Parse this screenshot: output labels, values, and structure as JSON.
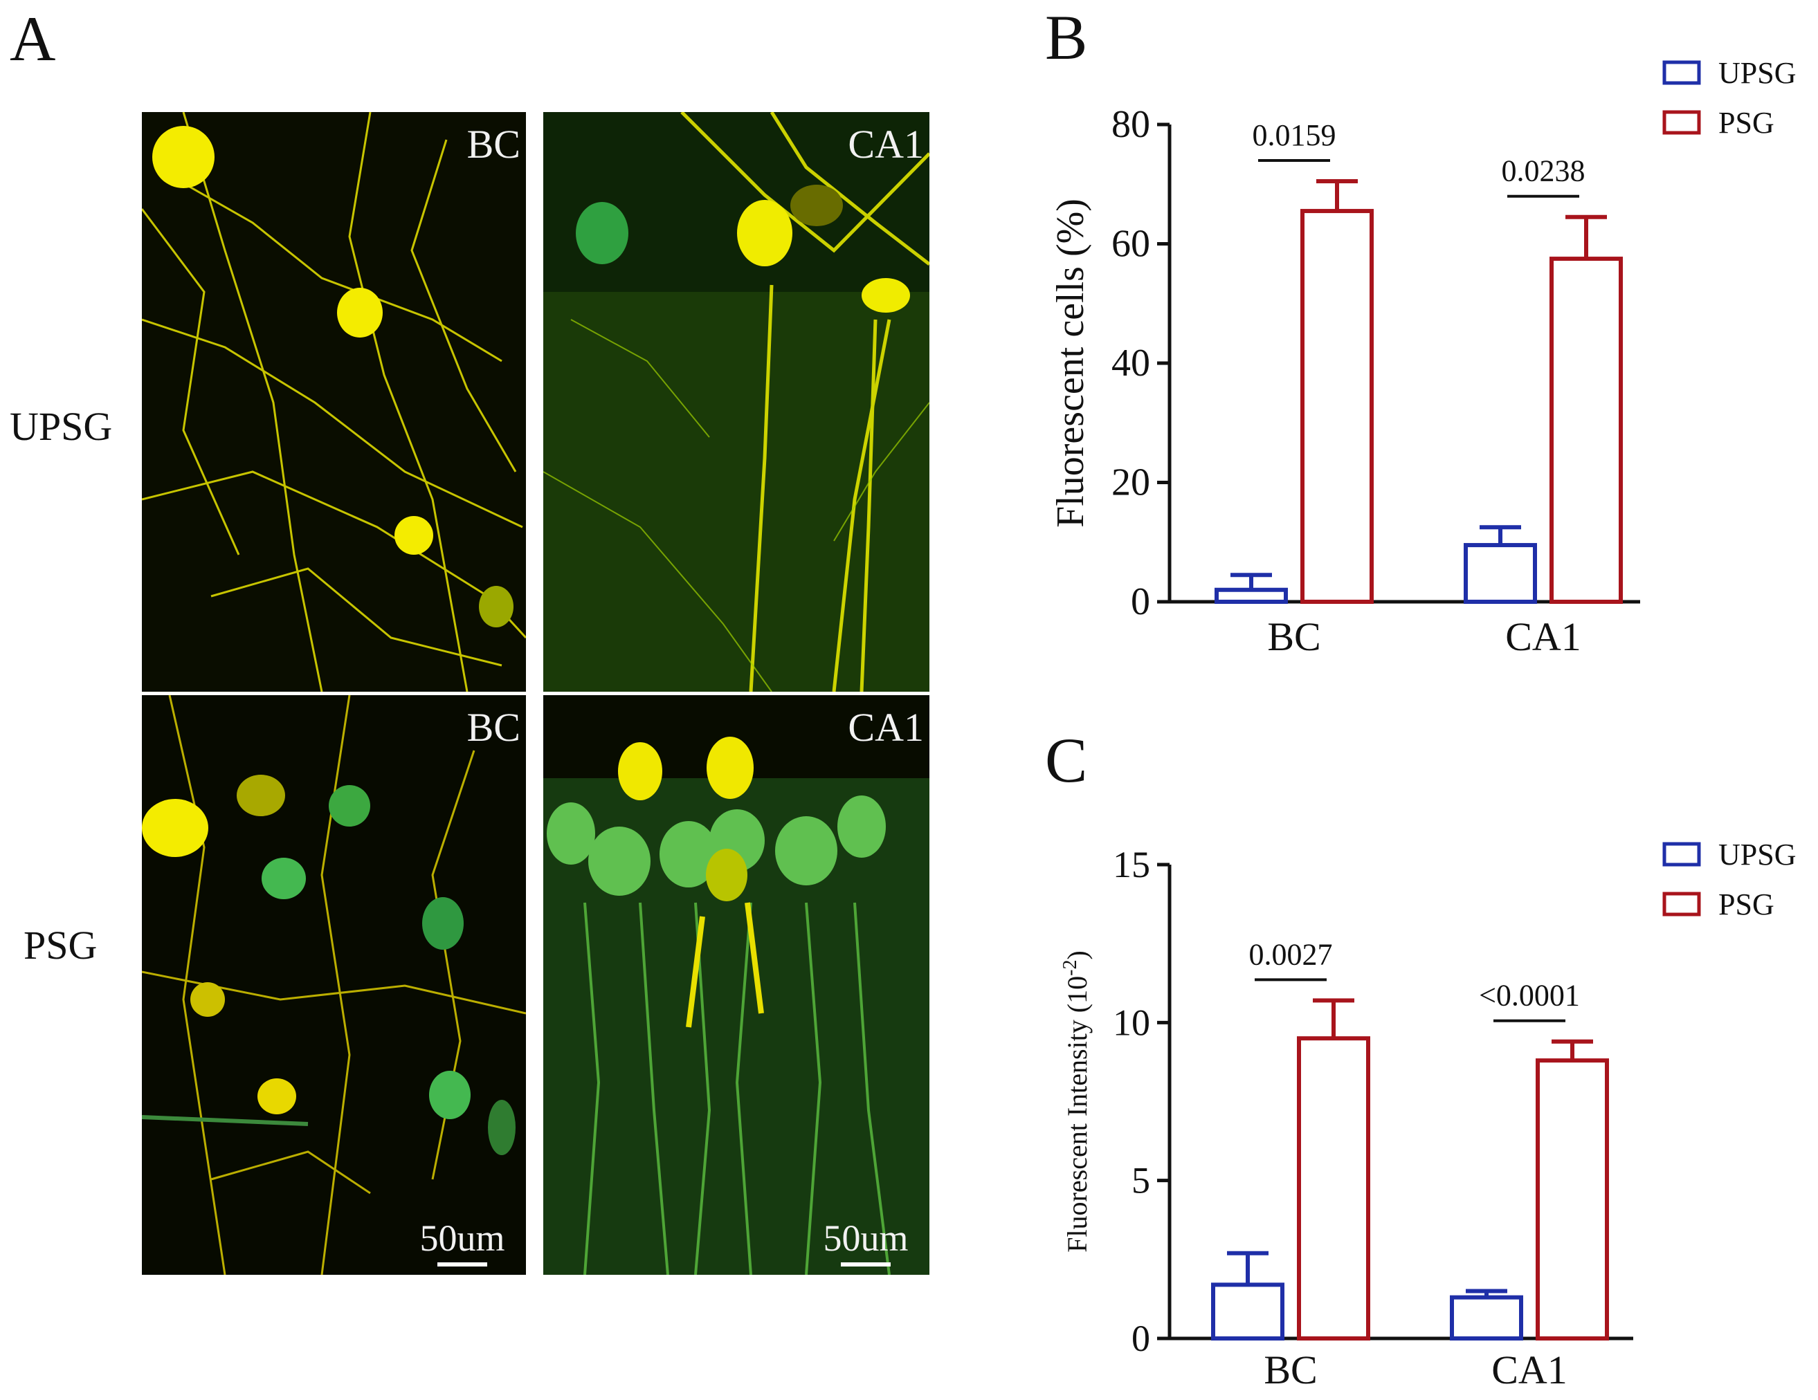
{
  "panel_a": {
    "letter": "A",
    "rows": [
      "UPSG",
      "PSG"
    ],
    "images": [
      {
        "region": "BC",
        "scale": "50um"
      },
      {
        "region": "CA1",
        "scale": "50um"
      }
    ]
  },
  "colors": {
    "upsg": "#1f2fa8",
    "psg": "#a8141c",
    "axis": "#111111"
  },
  "chart_data": [
    {
      "panel": "B",
      "type": "bar",
      "categories": [
        "BC",
        "CA1"
      ],
      "ylabel": "Fluorescent cells (%)",
      "ylim": [
        0,
        80
      ],
      "yticks": [
        0,
        20,
        40,
        60,
        80
      ],
      "legend": {
        "position": "top-right",
        "entries": [
          "UPSG",
          "PSG"
        ]
      },
      "series": [
        {
          "name": "UPSG",
          "values": [
            2,
            9.5
          ],
          "errors": [
            2.5,
            3
          ]
        },
        {
          "name": "PSG",
          "values": [
            65.5,
            57.5
          ],
          "errors": [
            5,
            7
          ]
        }
      ],
      "annotations": [
        "0.0159",
        "0.0238"
      ]
    },
    {
      "panel": "C",
      "type": "bar",
      "categories": [
        "BC",
        "CA1"
      ],
      "ylabel": "Fluorescent Intensity (10",
      "ylabel_sup": "-2",
      "ylabel_end": ")",
      "ylim": [
        0,
        15
      ],
      "yticks": [
        0,
        5,
        10,
        15
      ],
      "legend": {
        "position": "top-right",
        "entries": [
          "UPSG",
          "PSG"
        ]
      },
      "series": [
        {
          "name": "UPSG",
          "values": [
            1.7,
            1.3
          ],
          "errors": [
            1.0,
            0.2
          ]
        },
        {
          "name": "PSG",
          "values": [
            9.5,
            8.8
          ],
          "errors": [
            1.2,
            0.6
          ]
        }
      ],
      "annotations": [
        "0.0027",
        "<0.0001"
      ]
    }
  ]
}
